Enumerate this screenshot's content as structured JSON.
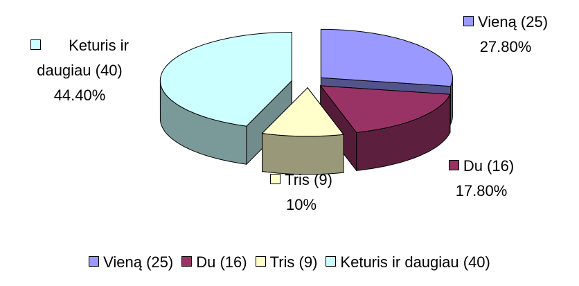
{
  "chart_data": {
    "type": "pie3d",
    "categories": [
      "Vieną (25)",
      "Du (16)",
      "Tris (9)",
      "Keturis ir daugiau (40)"
    ],
    "values": [
      27.8,
      17.8,
      10,
      44.4
    ],
    "value_labels": [
      "27.80%",
      "17.80%",
      "10%",
      "44.40%"
    ],
    "colors": [
      "#9999ff",
      "#993366",
      "#ffffcc",
      "#ccffff"
    ],
    "legend": "bottom"
  }
}
